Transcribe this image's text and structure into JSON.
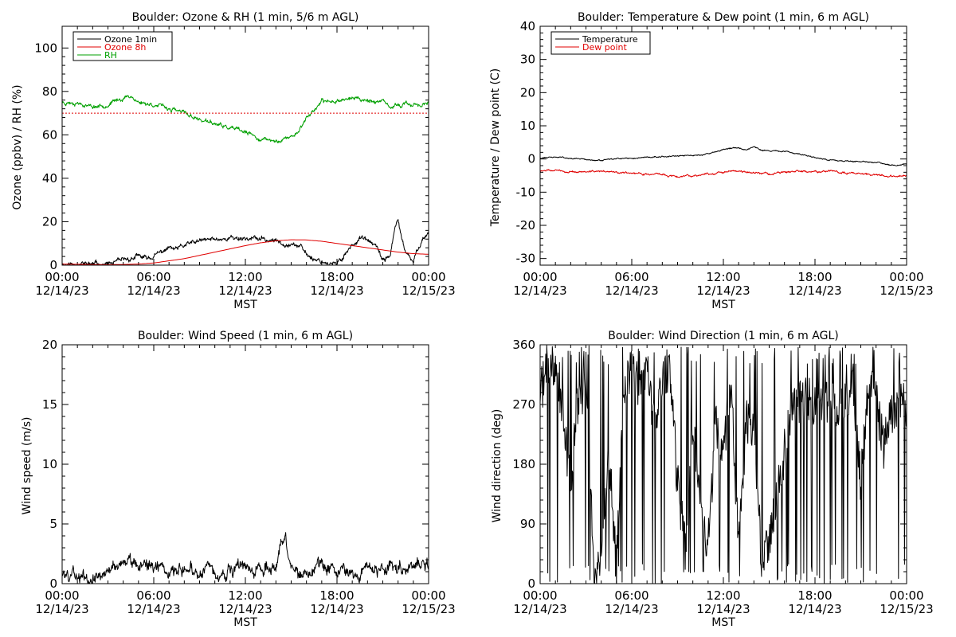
{
  "colors": {
    "black": "#000000",
    "red": "#e00000",
    "green": "#00a000",
    "background": "#ffffff"
  },
  "chart_data": [
    {
      "type": "line",
      "title": "Boulder: Ozone & RH (1 min, 5/6 m AGL)",
      "xlabel": "MST",
      "ylabel": "Ozone (ppbv) / RH (%)",
      "xlim": [
        0,
        24
      ],
      "ylim": [
        0,
        110
      ],
      "yticks": [
        0,
        20,
        40,
        60,
        80,
        100
      ],
      "x_tick_labels": [
        {
          "time": "00:00",
          "date": "12/14/23"
        },
        {
          "time": "06:00",
          "date": "12/14/23"
        },
        {
          "time": "12:00",
          "date": "12/14/23"
        },
        {
          "time": "18:00",
          "date": "12/14/23"
        },
        {
          "time": "00:00",
          "date": "12/15/23"
        }
      ],
      "legend": {
        "position": "top-left",
        "entries": [
          "Ozone 1min",
          "Ozone 8h",
          "RH"
        ]
      },
      "series": [
        {
          "name": "Ozone 1min",
          "color": "#000000",
          "noise": 1.2,
          "seed": 11,
          "x": [
            0,
            1,
            2,
            3,
            3.5,
            4,
            5,
            5.5,
            6,
            6.5,
            7,
            7.5,
            8,
            9,
            10,
            11,
            12,
            13,
            14,
            15,
            15.5,
            16,
            16.5,
            17,
            17.5,
            18,
            18.3,
            18.7,
            19,
            19.5,
            20,
            20.5,
            21,
            21.5,
            21.8,
            22,
            22.3,
            22.5,
            22.8,
            23,
            23.3,
            23.6,
            24
          ],
          "y": [
            0.5,
            0.5,
            0.5,
            0.5,
            1,
            2,
            4,
            3,
            4,
            6,
            8,
            7,
            9,
            11,
            12,
            12.5,
            12.5,
            12,
            11,
            10,
            9,
            5,
            3,
            2,
            1,
            0,
            3,
            7,
            9,
            13,
            11,
            9,
            2,
            5,
            17,
            20,
            11,
            5,
            3,
            1,
            8,
            12,
            15
          ]
        },
        {
          "name": "Ozone 8h",
          "color": "#e00000",
          "noise": 0,
          "seed": 0,
          "x": [
            0,
            2,
            3,
            4,
            5,
            6,
            7,
            8,
            9,
            10,
            11,
            12,
            13,
            14,
            15,
            16,
            17,
            18,
            19,
            20,
            21,
            22,
            23,
            24
          ],
          "y": [
            0.5,
            0.3,
            0.2,
            0.3,
            0.5,
            1,
            2,
            3,
            4.5,
            6,
            7.5,
            9,
            10.3,
            11.2,
            11.7,
            11.6,
            11,
            10,
            9,
            8,
            7,
            6,
            5.3,
            5
          ]
        },
        {
          "name": "RH",
          "color": "#00a000",
          "noise": 1.0,
          "seed": 23,
          "x": [
            0,
            1,
            2,
            3,
            4,
            4.5,
            5,
            6,
            7,
            8,
            9,
            10,
            11,
            12,
            13,
            14,
            15,
            15.5,
            16,
            17,
            18,
            19,
            20,
            21,
            21.5,
            22,
            23,
            24
          ],
          "y": [
            75,
            75,
            73,
            74,
            77,
            78,
            75,
            74,
            72,
            70,
            67,
            65,
            63,
            61,
            58,
            57,
            59,
            62,
            68,
            75,
            76,
            77,
            76,
            75,
            72,
            74,
            74,
            74
          ]
        },
        {
          "name": "",
          "color": "#e00000",
          "dashed": true,
          "noise": 0,
          "seed": 0,
          "x": [
            0,
            24
          ],
          "y": [
            70,
            70
          ]
        }
      ]
    },
    {
      "type": "line",
      "title": "Boulder: Temperature & Dew point (1 min, 6 m AGL)",
      "xlabel": "MST",
      "ylabel": "Temperature / Dew point (C)",
      "xlim": [
        0,
        24
      ],
      "ylim": [
        -32,
        40
      ],
      "yticks": [
        -30,
        -20,
        -10,
        0,
        10,
        20,
        30,
        40
      ],
      "x_tick_labels": [
        {
          "time": "00:00",
          "date": "12/14/23"
        },
        {
          "time": "06:00",
          "date": "12/14/23"
        },
        {
          "time": "12:00",
          "date": "12/14/23"
        },
        {
          "time": "18:00",
          "date": "12/14/23"
        },
        {
          "time": "00:00",
          "date": "12/15/23"
        }
      ],
      "legend": {
        "position": "top-left",
        "entries": [
          "Temperature",
          "Dew point"
        ]
      },
      "series": [
        {
          "name": "Temperature",
          "color": "#000000",
          "noise": 0.2,
          "seed": 31,
          "x": [
            0,
            1,
            2,
            3,
            4,
            5,
            6,
            7,
            8,
            9,
            10,
            11,
            12,
            12.5,
            13,
            13.5,
            14,
            14.5,
            15,
            16,
            17,
            18,
            19,
            20,
            21,
            22,
            23,
            24
          ],
          "y": [
            0.3,
            0.6,
            0.3,
            -0.2,
            -0.5,
            0,
            0.2,
            0.5,
            0.8,
            0.9,
            1,
            1.5,
            2.8,
            3.2,
            3.5,
            2.8,
            3.8,
            2.8,
            2.5,
            2.2,
            1.5,
            0.5,
            -0.3,
            -0.6,
            -0.8,
            -1,
            -1.8,
            -1.5
          ]
        },
        {
          "name": "Dew point",
          "color": "#e00000",
          "noise": 0.3,
          "seed": 47,
          "x": [
            0,
            1,
            2,
            3,
            4,
            5,
            6,
            7,
            8,
            9,
            10,
            11,
            12,
            13,
            14,
            15,
            16,
            17,
            18,
            19,
            20,
            21,
            22,
            23,
            24
          ],
          "y": [
            -3.5,
            -3.5,
            -3.8,
            -4,
            -3.8,
            -4,
            -4.2,
            -4.5,
            -4.8,
            -5.2,
            -5,
            -4.5,
            -4,
            -3.5,
            -4,
            -4.5,
            -4,
            -3.8,
            -3.8,
            -3.8,
            -4,
            -4.3,
            -4.8,
            -5.2,
            -5
          ]
        }
      ]
    },
    {
      "type": "line",
      "title": "Boulder: Wind Speed (1 min, 6 m AGL)",
      "xlabel": "MST",
      "ylabel": "Wind speed (m/s)",
      "xlim": [
        0,
        24
      ],
      "ylim": [
        0,
        20
      ],
      "yticks": [
        0,
        5,
        10,
        15,
        20
      ],
      "x_tick_labels": [
        {
          "time": "00:00",
          "date": "12/14/23"
        },
        {
          "time": "06:00",
          "date": "12/14/23"
        },
        {
          "time": "12:00",
          "date": "12/14/23"
        },
        {
          "time": "18:00",
          "date": "12/14/23"
        },
        {
          "time": "00:00",
          "date": "12/15/23"
        }
      ],
      "series": [
        {
          "name": "Wind speed",
          "color": "#000000",
          "noise": 0.6,
          "seed": 59,
          "min": 0,
          "x": [
            0,
            1,
            2,
            3,
            4,
            5,
            6,
            7,
            8,
            9,
            10,
            11,
            12,
            13,
            14,
            14.3,
            14.6,
            15,
            15.5,
            16,
            17,
            18,
            19,
            20,
            21,
            22,
            23,
            24
          ],
          "y": [
            0.8,
            0.8,
            0.5,
            1.3,
            1.8,
            1.9,
            1.3,
            1.5,
            1.2,
            1.2,
            1,
            1,
            1.2,
            1.2,
            1.8,
            3.3,
            3.5,
            1.5,
            0.5,
            1,
            1.5,
            1.2,
            1.2,
            1.5,
            1.2,
            1.5,
            1.5,
            1.7
          ]
        }
      ]
    },
    {
      "type": "line",
      "title": "Boulder: Wind Direction (1 min, 6 m AGL)",
      "xlabel": "MST",
      "ylabel": "Wind direction (deg)",
      "xlim": [
        0,
        24
      ],
      "ylim": [
        0,
        360
      ],
      "yticks": [
        0,
        90,
        180,
        270,
        360
      ],
      "x_tick_labels": [
        {
          "time": "00:00",
          "date": "12/14/23"
        },
        {
          "time": "06:00",
          "date": "12/14/23"
        },
        {
          "time": "12:00",
          "date": "12/14/23"
        },
        {
          "time": "18:00",
          "date": "12/14/23"
        },
        {
          "time": "00:00",
          "date": "12/15/23"
        }
      ],
      "series": [
        {
          "name": "Wind direction",
          "color": "#000000",
          "noise": 0,
          "seed": 71,
          "erratic": true,
          "x": [
            0,
            0.5,
            1,
            1.5,
            2,
            2.5,
            3,
            3.5,
            4,
            4.5,
            5,
            5.5,
            6,
            6.5,
            7,
            7.5,
            8,
            8.5,
            9,
            9.5,
            10,
            10.5,
            11,
            11.5,
            12,
            12.5,
            13,
            13.5,
            14,
            14.5,
            15,
            15.5,
            16,
            16.5,
            17,
            17.5,
            18,
            18.5,
            19,
            19.5,
            20,
            20.5,
            21,
            21.5,
            22,
            22.5,
            23,
            23.5,
            24
          ],
          "y": [
            290,
            320,
            330,
            250,
            150,
            280,
            300,
            30,
            20,
            200,
            20,
            300,
            320,
            290,
            310,
            240,
            300,
            320,
            150,
            50,
            250,
            120,
            60,
            240,
            200,
            300,
            50,
            250,
            220,
            40,
            60,
            130,
            200,
            280,
            270,
            280,
            270,
            275,
            280,
            270,
            280,
            300,
            150,
            300,
            280,
            200,
            260,
            270,
            265
          ]
        }
      ]
    }
  ]
}
